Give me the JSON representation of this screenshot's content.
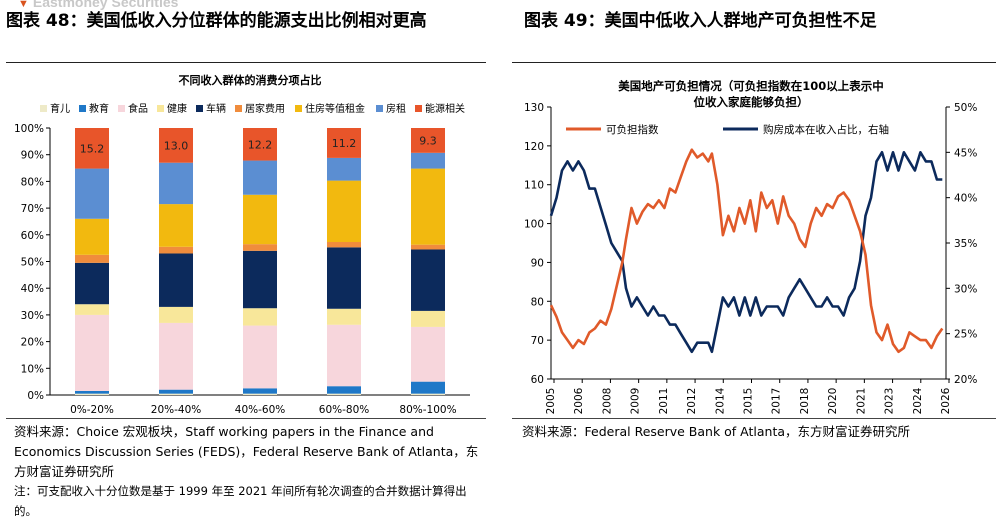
{
  "watermark": "Eastmoney Securities",
  "left_panel": {
    "title": "图表 48：美国低收入分位群体的能源支出比例相对更高",
    "source": "资料来源：Choice 宏观板块，Staff working papers in the Finance and Economics Discussion Series (FEDS)，Federal Reserve Bank of Atlanta，东方财富证券研究所",
    "note": "注：可支配收入十分位数是基于 1999 年至 2021 年间所有轮次调查的合并数据计算得出的。"
  },
  "right_panel": {
    "title": "图表 49：美国中低收入人群地产可负担性不足",
    "source": "资料来源：Federal Reserve Bank of Atlanta，东方财富证券研究所"
  },
  "chart_data": [
    {
      "type": "bar",
      "stacked": true,
      "title": "不同收入群体的消费分项占比",
      "categories": [
        "0%-20%",
        "20%-40%",
        "40%-60%",
        "60%-80%",
        "80%-100%"
      ],
      "ylim": [
        0,
        100
      ],
      "yticks": [
        "0%",
        "10%",
        "20%",
        "30%",
        "40%",
        "50%",
        "60%",
        "70%",
        "80%",
        "90%",
        "100%"
      ],
      "legend_position": "top",
      "grid": false,
      "series": [
        {
          "name": "育儿",
          "color": "#eeeac8",
          "values": [
            0.5,
            0.5,
            0.5,
            0.5,
            0.5
          ]
        },
        {
          "name": "教育",
          "color": "#1f78c8",
          "values": [
            1.0,
            1.5,
            2.0,
            2.8,
            4.5
          ]
        },
        {
          "name": "食品",
          "color": "#f7d6dc",
          "values": [
            28.5,
            25.0,
            23.5,
            23.0,
            20.5
          ]
        },
        {
          "name": "健康",
          "color": "#f8e79a",
          "values": [
            4.0,
            6.0,
            6.5,
            6.0,
            6.0
          ]
        },
        {
          "name": "车辆",
          "color": "#0c2a5c",
          "values": [
            15.5,
            20.0,
            21.5,
            23.0,
            23.0
          ]
        },
        {
          "name": "居家费用",
          "color": "#f08c3c",
          "values": [
            3.0,
            2.5,
            2.5,
            2.0,
            1.8
          ]
        },
        {
          "name": "住房等值租金",
          "color": "#f2b90f",
          "values": [
            13.5,
            16.0,
            18.5,
            23.0,
            28.5
          ]
        },
        {
          "name": "房租",
          "color": "#5b8ed2",
          "values": [
            18.8,
            15.5,
            12.8,
            8.5,
            5.9
          ]
        },
        {
          "name": "能源相关",
          "color": "#e8552a",
          "values": [
            15.2,
            13.0,
            12.2,
            11.2,
            9.3
          ]
        }
      ],
      "data_labels": [
        "15.2",
        "13.0",
        "12.2",
        "11.2",
        "9.3"
      ]
    },
    {
      "type": "line",
      "title": "美国地产可负担情况（可负担指数在100以上表示中位收入家庭能够负担）",
      "x_range": [
        2005,
        2026.6
      ],
      "xticks": [
        "2005",
        "2006",
        "2008",
        "2009",
        "2011",
        "2012",
        "2014",
        "2015",
        "2017",
        "2018",
        "2020",
        "2021",
        "2023",
        "2024",
        "2026"
      ],
      "ylim_left": [
        60,
        130
      ],
      "yticks_left": [
        "60",
        "70",
        "80",
        "90",
        "100",
        "110",
        "120",
        "130"
      ],
      "ylim_right": [
        20,
        50
      ],
      "yticks_right": [
        "20%",
        "25%",
        "30%",
        "35%",
        "40%",
        "45%",
        "50%"
      ],
      "legend_position": "top",
      "grid": false,
      "series": [
        {
          "name": "可负担指数",
          "axis": "left",
          "color": "#e05a2a",
          "x": [
            2005.0,
            2005.3,
            2005.6,
            2005.9,
            2006.2,
            2006.5,
            2006.8,
            2007.1,
            2007.4,
            2007.7,
            2008.0,
            2008.3,
            2008.6,
            2008.9,
            2009.1,
            2009.4,
            2009.7,
            2010.0,
            2010.3,
            2010.6,
            2010.9,
            2011.2,
            2011.5,
            2011.8,
            2012.1,
            2012.4,
            2012.7,
            2013.0,
            2013.3,
            2013.6,
            2013.8,
            2014.1,
            2014.4,
            2014.7,
            2015.0,
            2015.3,
            2015.6,
            2015.9,
            2016.2,
            2016.5,
            2016.8,
            2017.1,
            2017.4,
            2017.7,
            2018.0,
            2018.3,
            2018.6,
            2018.9,
            2019.2,
            2019.5,
            2019.8,
            2020.1,
            2020.4,
            2020.7,
            2021.0,
            2021.3,
            2021.6,
            2021.9,
            2022.2,
            2022.5,
            2022.8,
            2023.1,
            2023.4,
            2023.7,
            2024.0,
            2024.3,
            2024.6,
            2024.9,
            2025.2,
            2025.5,
            2025.8,
            2026.1,
            2026.4
          ],
          "values": [
            79,
            76,
            72,
            70,
            68,
            70,
            69,
            72,
            73,
            75,
            74,
            78,
            84,
            90,
            96,
            104,
            100,
            103,
            105,
            104,
            106,
            104,
            109,
            108,
            112,
            116,
            119,
            117,
            118,
            116,
            118,
            110,
            97,
            102,
            98,
            104,
            100,
            106,
            98,
            108,
            104,
            106,
            100,
            107,
            102,
            100,
            96,
            94,
            100,
            104,
            102,
            105,
            104,
            107,
            108,
            106,
            102,
            98,
            92,
            79,
            72,
            70,
            74,
            69,
            67,
            68,
            72,
            71,
            70,
            70,
            68,
            71,
            73
          ]
        },
        {
          "name": "购房成本在收入占比，右轴",
          "axis": "right",
          "color": "#0c2a5c",
          "x": [
            2005.0,
            2005.3,
            2005.6,
            2005.9,
            2006.2,
            2006.5,
            2006.8,
            2007.1,
            2007.4,
            2007.7,
            2008.0,
            2008.3,
            2008.6,
            2008.9,
            2009.1,
            2009.4,
            2009.7,
            2010.0,
            2010.3,
            2010.6,
            2010.9,
            2011.2,
            2011.5,
            2011.8,
            2012.1,
            2012.4,
            2012.7,
            2013.0,
            2013.3,
            2013.6,
            2013.8,
            2014.1,
            2014.4,
            2014.7,
            2015.0,
            2015.3,
            2015.6,
            2015.9,
            2016.2,
            2016.5,
            2016.8,
            2017.1,
            2017.4,
            2017.7,
            2018.0,
            2018.3,
            2018.6,
            2018.9,
            2019.2,
            2019.5,
            2019.8,
            2020.1,
            2020.4,
            2020.7,
            2021.0,
            2021.3,
            2021.6,
            2021.9,
            2022.2,
            2022.5,
            2022.8,
            2023.1,
            2023.4,
            2023.7,
            2024.0,
            2024.3,
            2024.6,
            2024.9,
            2025.2,
            2025.5,
            2025.8,
            2026.1,
            2026.4
          ],
          "values": [
            38,
            40,
            43,
            44,
            43,
            44,
            43,
            41,
            41,
            39,
            37,
            35,
            34,
            33,
            30,
            28,
            29,
            28,
            27,
            28,
            27,
            27,
            26,
            26,
            25,
            24,
            23,
            24,
            24,
            24,
            23,
            26,
            29,
            28,
            29,
            27,
            29,
            27,
            29,
            27,
            28,
            28,
            28,
            27,
            29,
            30,
            31,
            30,
            29,
            28,
            28,
            29,
            28,
            28,
            27,
            29,
            30,
            33,
            38,
            40,
            44,
            45,
            43,
            45,
            43,
            45,
            44,
            43,
            45,
            44,
            44,
            42,
            42
          ]
        }
      ]
    }
  ]
}
